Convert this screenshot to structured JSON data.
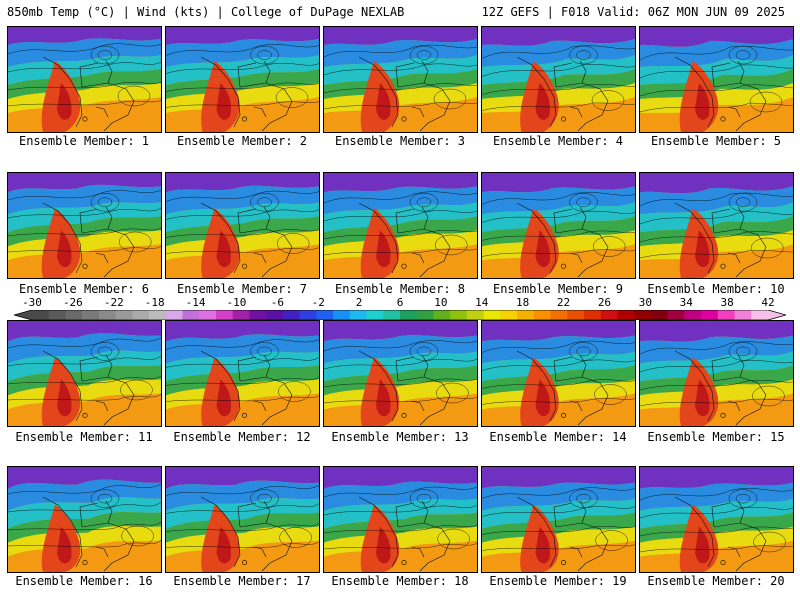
{
  "header": {
    "left": "850mb Temp (°C) | Wind (kts) | College of DuPage NEXLAB",
    "right": "12Z GEFS | F018 Valid: 06Z MON JUN 09 2025"
  },
  "panels": [
    {
      "label": "Ensemble Member: 1"
    },
    {
      "label": "Ensemble Member: 2"
    },
    {
      "label": "Ensemble Member: 3"
    },
    {
      "label": "Ensemble Member: 4"
    },
    {
      "label": "Ensemble Member: 5"
    },
    {
      "label": "Ensemble Member: 6"
    },
    {
      "label": "Ensemble Member: 7"
    },
    {
      "label": "Ensemble Member: 8"
    },
    {
      "label": "Ensemble Member: 9"
    },
    {
      "label": "Ensemble Member: 10"
    },
    {
      "label": "Ensemble Member: 11"
    },
    {
      "label": "Ensemble Member: 12"
    },
    {
      "label": "Ensemble Member: 13"
    },
    {
      "label": "Ensemble Member: 14"
    },
    {
      "label": "Ensemble Member: 15"
    },
    {
      "label": "Ensemble Member: 16"
    },
    {
      "label": "Ensemble Member: 17"
    },
    {
      "label": "Ensemble Member: 18"
    },
    {
      "label": "Ensemble Member: 19"
    },
    {
      "label": "Ensemble Member: 20"
    }
  ],
  "colorbar": {
    "tick_labels": [
      "-30",
      "-26",
      "-22",
      "-18",
      "-14",
      "-10",
      "-6",
      "-2",
      "2",
      "6",
      "10",
      "14",
      "18",
      "22",
      "26",
      "30",
      "34",
      "38",
      "42"
    ],
    "colors": [
      "#4a4a4a",
      "#5a5a5a",
      "#6a6a6a",
      "#7a7a7a",
      "#8a8a8a",
      "#9a9a9a",
      "#aaaaaa",
      "#bcbcbc",
      "#d8a8e8",
      "#c070d8",
      "#e070e0",
      "#d040c8",
      "#a020a8",
      "#7010a0",
      "#5a10a0",
      "#4020c0",
      "#3040e0",
      "#2060f0",
      "#1890f8",
      "#20b8f0",
      "#20d0d0",
      "#20c0a0",
      "#20a060",
      "#30a040",
      "#60b020",
      "#90c010",
      "#c0d010",
      "#e8e800",
      "#f8d000",
      "#f8b000",
      "#f89000",
      "#f07000",
      "#e85000",
      "#e03000",
      "#d01010",
      "#b00000",
      "#900000",
      "#800010",
      "#a00040",
      "#c00080",
      "#e000a0",
      "#f040c0",
      "#f080d8",
      "#f8c0e8"
    ]
  },
  "map_colors": {
    "ocean_north": "#7030c0",
    "cold": "#2a8ce0",
    "cool": "#24c0c8",
    "mild": "#3aa84a",
    "warm": "#e8dc10",
    "hot": "#f39a12",
    "very_hot": "#e2461a",
    "extreme": "#c01818"
  }
}
